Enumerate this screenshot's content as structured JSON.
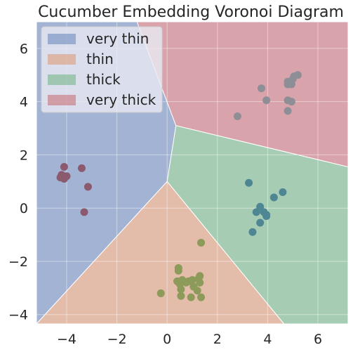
{
  "chart_data": {
    "type": "scatter",
    "title": "Cucumber Embedding Voronoi Diagram",
    "xlabel": "",
    "ylabel": "",
    "xlim": [
      -5.2,
      7.2
    ],
    "ylim": [
      -4.35,
      7.0
    ],
    "x_ticks": [
      -4,
      -2,
      0,
      2,
      4,
      6
    ],
    "x_tick_labels": [
      "−4",
      "−2",
      "0",
      "2",
      "4",
      "6"
    ],
    "y_ticks": [
      -4,
      -2,
      0,
      2,
      4,
      6
    ],
    "y_tick_labels": [
      "−4",
      "−2",
      "0",
      "2",
      "4",
      "6"
    ],
    "grid": true,
    "legend_position": "top-left",
    "regions": [
      {
        "name": "very thin",
        "color": "#4c72b0",
        "polygon": [
          [
            -5.2,
            7.0
          ],
          [
            -1.2,
            7.0
          ],
          [
            0.35,
            3.1
          ],
          [
            0.0,
            1.0
          ],
          [
            -5.2,
            -4.35
          ]
        ]
      },
      {
        "name": "thin",
        "color": "#dd8452",
        "polygon": [
          [
            -5.2,
            -4.35
          ],
          [
            0.0,
            1.0
          ],
          [
            4.65,
            -4.35
          ]
        ]
      },
      {
        "name": "thick",
        "color": "#55a868",
        "polygon": [
          [
            0.0,
            1.0
          ],
          [
            0.35,
            3.1
          ],
          [
            7.2,
            1.55
          ],
          [
            7.2,
            -4.35
          ],
          [
            4.65,
            -4.35
          ]
        ]
      },
      {
        "name": "very thick",
        "color": "#c44e52",
        "polygon": [
          [
            -1.2,
            7.0
          ],
          [
            7.2,
            7.0
          ],
          [
            7.2,
            1.55
          ],
          [
            0.35,
            3.1
          ]
        ]
      }
    ],
    "series": [
      {
        "color": "#8c5a6e",
        "points": [
          [
            -4.1,
            1.55
          ],
          [
            -3.4,
            1.5
          ],
          [
            -4.2,
            1.25
          ],
          [
            -4.25,
            1.15
          ],
          [
            -4.0,
            1.2
          ],
          [
            -4.1,
            1.1
          ],
          [
            -3.15,
            0.8
          ],
          [
            -3.3,
            -0.15
          ]
        ]
      },
      {
        "color": "#8c9a5a",
        "points": [
          [
            1.35,
            -1.3
          ],
          [
            0.45,
            -2.25
          ],
          [
            0.45,
            -2.35
          ],
          [
            1.3,
            -2.55
          ],
          [
            1.25,
            -2.65
          ],
          [
            0.4,
            -2.75
          ],
          [
            0.6,
            -2.7
          ],
          [
            0.85,
            -2.75
          ],
          [
            1.0,
            -2.7
          ],
          [
            0.5,
            -2.85
          ],
          [
            0.75,
            -2.8
          ],
          [
            1.3,
            -2.8
          ],
          [
            1.05,
            -2.95
          ],
          [
            0.55,
            -3.05
          ],
          [
            1.2,
            -3.1
          ],
          [
            -0.25,
            -3.2
          ],
          [
            0.55,
            -3.3
          ],
          [
            0.95,
            -3.35
          ],
          [
            1.35,
            -3.35
          ]
        ]
      },
      {
        "color": "#4e8694",
        "points": [
          [
            3.25,
            0.95
          ],
          [
            4.6,
            0.6
          ],
          [
            4.25,
            0.4
          ],
          [
            3.7,
            0.05
          ],
          [
            3.55,
            -0.15
          ],
          [
            3.85,
            -0.15
          ],
          [
            3.95,
            -0.25
          ],
          [
            3.95,
            -0.3
          ],
          [
            3.7,
            -0.55
          ],
          [
            3.4,
            -0.9
          ]
        ]
      },
      {
        "color": "#8e8e96",
        "points": [
          [
            5.2,
            5.0
          ],
          [
            5.05,
            4.95
          ],
          [
            5.0,
            4.85
          ],
          [
            4.8,
            4.75
          ],
          [
            4.8,
            4.65
          ],
          [
            4.95,
            4.65
          ],
          [
            3.75,
            4.5
          ],
          [
            3.95,
            4.05
          ],
          [
            4.8,
            4.05
          ],
          [
            4.95,
            4.0
          ],
          [
            4.8,
            3.65
          ],
          [
            2.8,
            3.45
          ]
        ]
      }
    ]
  }
}
